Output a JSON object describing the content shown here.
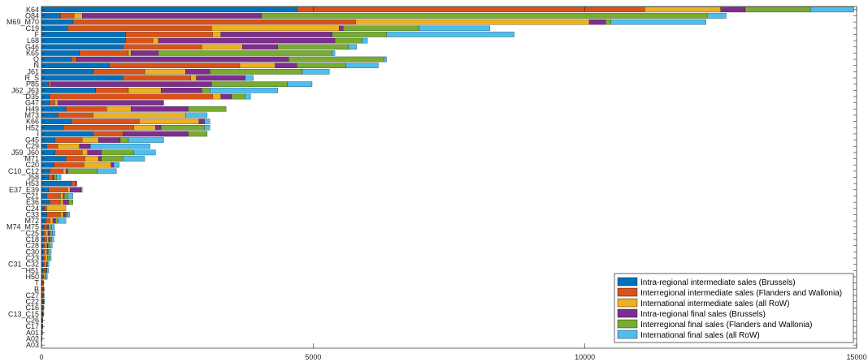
{
  "chart_data": {
    "type": "bar",
    "orientation": "horizontal",
    "stacked": true,
    "title": "",
    "xlabel": "",
    "ylabel": "",
    "xlim": [
      0,
      15000
    ],
    "x_ticks": [
      0,
      5000,
      10000,
      15000
    ],
    "grid": false,
    "legend_position": "bottom-right",
    "categories": [
      "K64",
      "O84",
      "M69_M70",
      "C19",
      "F",
      "L68",
      "G46",
      "K65",
      "Q",
      "N",
      "J61",
      "R_S",
      "P85",
      "J62_J63",
      "D35",
      "G47",
      "H49",
      "M73",
      "K66",
      "H52",
      "I",
      "G45",
      "C29",
      "J59_J60",
      "M71",
      "C20",
      "C10_C12",
      "J58",
      "H53",
      "E37_E39",
      "C21",
      "E36",
      "C24",
      "C33",
      "M72",
      "M74_M75",
      "C25",
      "C18",
      "C28",
      "C30",
      "C23",
      "C31_C32",
      "H51",
      "H50",
      "T",
      "B",
      "C27",
      "C22",
      "C16",
      "C13_C15",
      "C26",
      "C17",
      "A01",
      "A02",
      "A03"
    ],
    "y_tick_labels": [
      "K64",
      "O84",
      "M69_M70",
      "C19",
      "F",
      "L68",
      "G46",
      "K65",
      "Q",
      "N",
      "J61",
      "R_S",
      "P85",
      "J62_J63",
      "D35",
      "G47",
      "H49",
      "M73",
      "K66",
      "H52",
      "I",
      "G45",
      "C29",
      "J59_J60",
      "M71",
      "C20",
      "C10_C12",
      "J58",
      "H53",
      "E37_E39",
      "C21",
      "E36",
      "C24",
      "C33",
      "M72",
      "M74_M75",
      "C25",
      "C18",
      "C28",
      "C30",
      "C23",
      "C31_C32",
      "H51",
      "H50",
      "T",
      "B",
      "C27",
      "C22",
      "C16",
      "C13_C15",
      "C26",
      "C17",
      "A01",
      "A02",
      "A03"
    ],
    "series": [
      {
        "name": "Intra-regional intermediate sales (Brussels)",
        "color": "#0072BD",
        "values": [
          4700,
          350,
          580,
          480,
          1550,
          1550,
          1500,
          700,
          550,
          1250,
          950,
          1500,
          130,
          1000,
          150,
          150,
          450,
          300,
          550,
          400,
          950,
          250,
          100,
          250,
          450,
          230,
          150,
          130,
          550,
          130,
          100,
          150,
          50,
          100,
          80,
          50,
          30,
          50,
          30,
          30,
          30,
          30,
          30,
          20,
          10,
          10,
          5,
          10,
          5,
          5,
          5,
          5,
          3,
          2,
          1
        ]
      },
      {
        "name": "Interregional intermediate sales (Flanders and Wallonia)",
        "color": "#D95319",
        "values": [
          6400,
          250,
          5200,
          2650,
          1600,
          500,
          1450,
          900,
          100,
          2400,
          950,
          1250,
          50,
          600,
          3000,
          100,
          750,
          650,
          1250,
          1300,
          550,
          500,
          200,
          500,
          350,
          550,
          250,
          80,
          80,
          350,
          250,
          200,
          50,
          250,
          80,
          50,
          50,
          50,
          40,
          30,
          40,
          30,
          30,
          20,
          20,
          20,
          10,
          10,
          10,
          10,
          5,
          5,
          5,
          3,
          1
        ]
      },
      {
        "name": "International intermediate sales (all RoW)",
        "color": "#EDB120",
        "values": [
          1400,
          150,
          4300,
          2350,
          150,
          100,
          750,
          50,
          0,
          650,
          750,
          100,
          0,
          600,
          150,
          50,
          450,
          1700,
          1100,
          400,
          0,
          300,
          400,
          100,
          250,
          500,
          50,
          0,
          0,
          50,
          50,
          50,
          350,
          50,
          50,
          0,
          40,
          30,
          30,
          40,
          40,
          30,
          20,
          30,
          0,
          10,
          10,
          10,
          10,
          5,
          5,
          5,
          2,
          1,
          0
        ]
      },
      {
        "name": "Intra-regional final sales (Brussels)",
        "color": "#7E2F8E",
        "values": [
          450,
          3300,
          300,
          70,
          2050,
          3250,
          650,
          500,
          3900,
          400,
          450,
          900,
          2950,
          750,
          200,
          1950,
          1050,
          0,
          100,
          100,
          1200,
          400,
          200,
          250,
          50,
          50,
          30,
          20,
          20,
          200,
          20,
          100,
          0,
          50,
          50,
          30,
          30,
          30,
          20,
          10,
          0,
          10,
          10,
          0,
          5,
          5,
          5,
          5,
          5,
          5,
          2,
          2,
          2,
          1,
          0
        ]
      },
      {
        "name": "Interregional final sales (Flanders and Wallonia)",
        "color": "#77AC30",
        "values": [
          1200,
          8200,
          100,
          1400,
          1000,
          500,
          1300,
          3200,
          1750,
          900,
          1700,
          0,
          1400,
          150,
          250,
          0,
          700,
          0,
          0,
          800,
          350,
          150,
          0,
          600,
          400,
          0,
          550,
          50,
          0,
          20,
          60,
          80,
          0,
          30,
          50,
          60,
          50,
          30,
          30,
          20,
          30,
          10,
          10,
          10,
          5,
          5,
          10,
          10,
          5,
          5,
          3,
          3,
          2,
          1,
          0
        ]
      },
      {
        "name": "International final sales (all RoW)",
        "color": "#4DBEEE",
        "values": [
          800,
          350,
          1750,
          1300,
          2350,
          100,
          150,
          50,
          50,
          600,
          500,
          150,
          450,
          1250,
          100,
          0,
          0,
          400,
          100,
          100,
          0,
          650,
          1100,
          400,
          400,
          100,
          350,
          80,
          0,
          0,
          100,
          0,
          0,
          40,
          140,
          50,
          50,
          40,
          50,
          50,
          40,
          30,
          30,
          30,
          0,
          0,
          10,
          10,
          10,
          10,
          5,
          5,
          5,
          2,
          1
        ]
      }
    ]
  }
}
